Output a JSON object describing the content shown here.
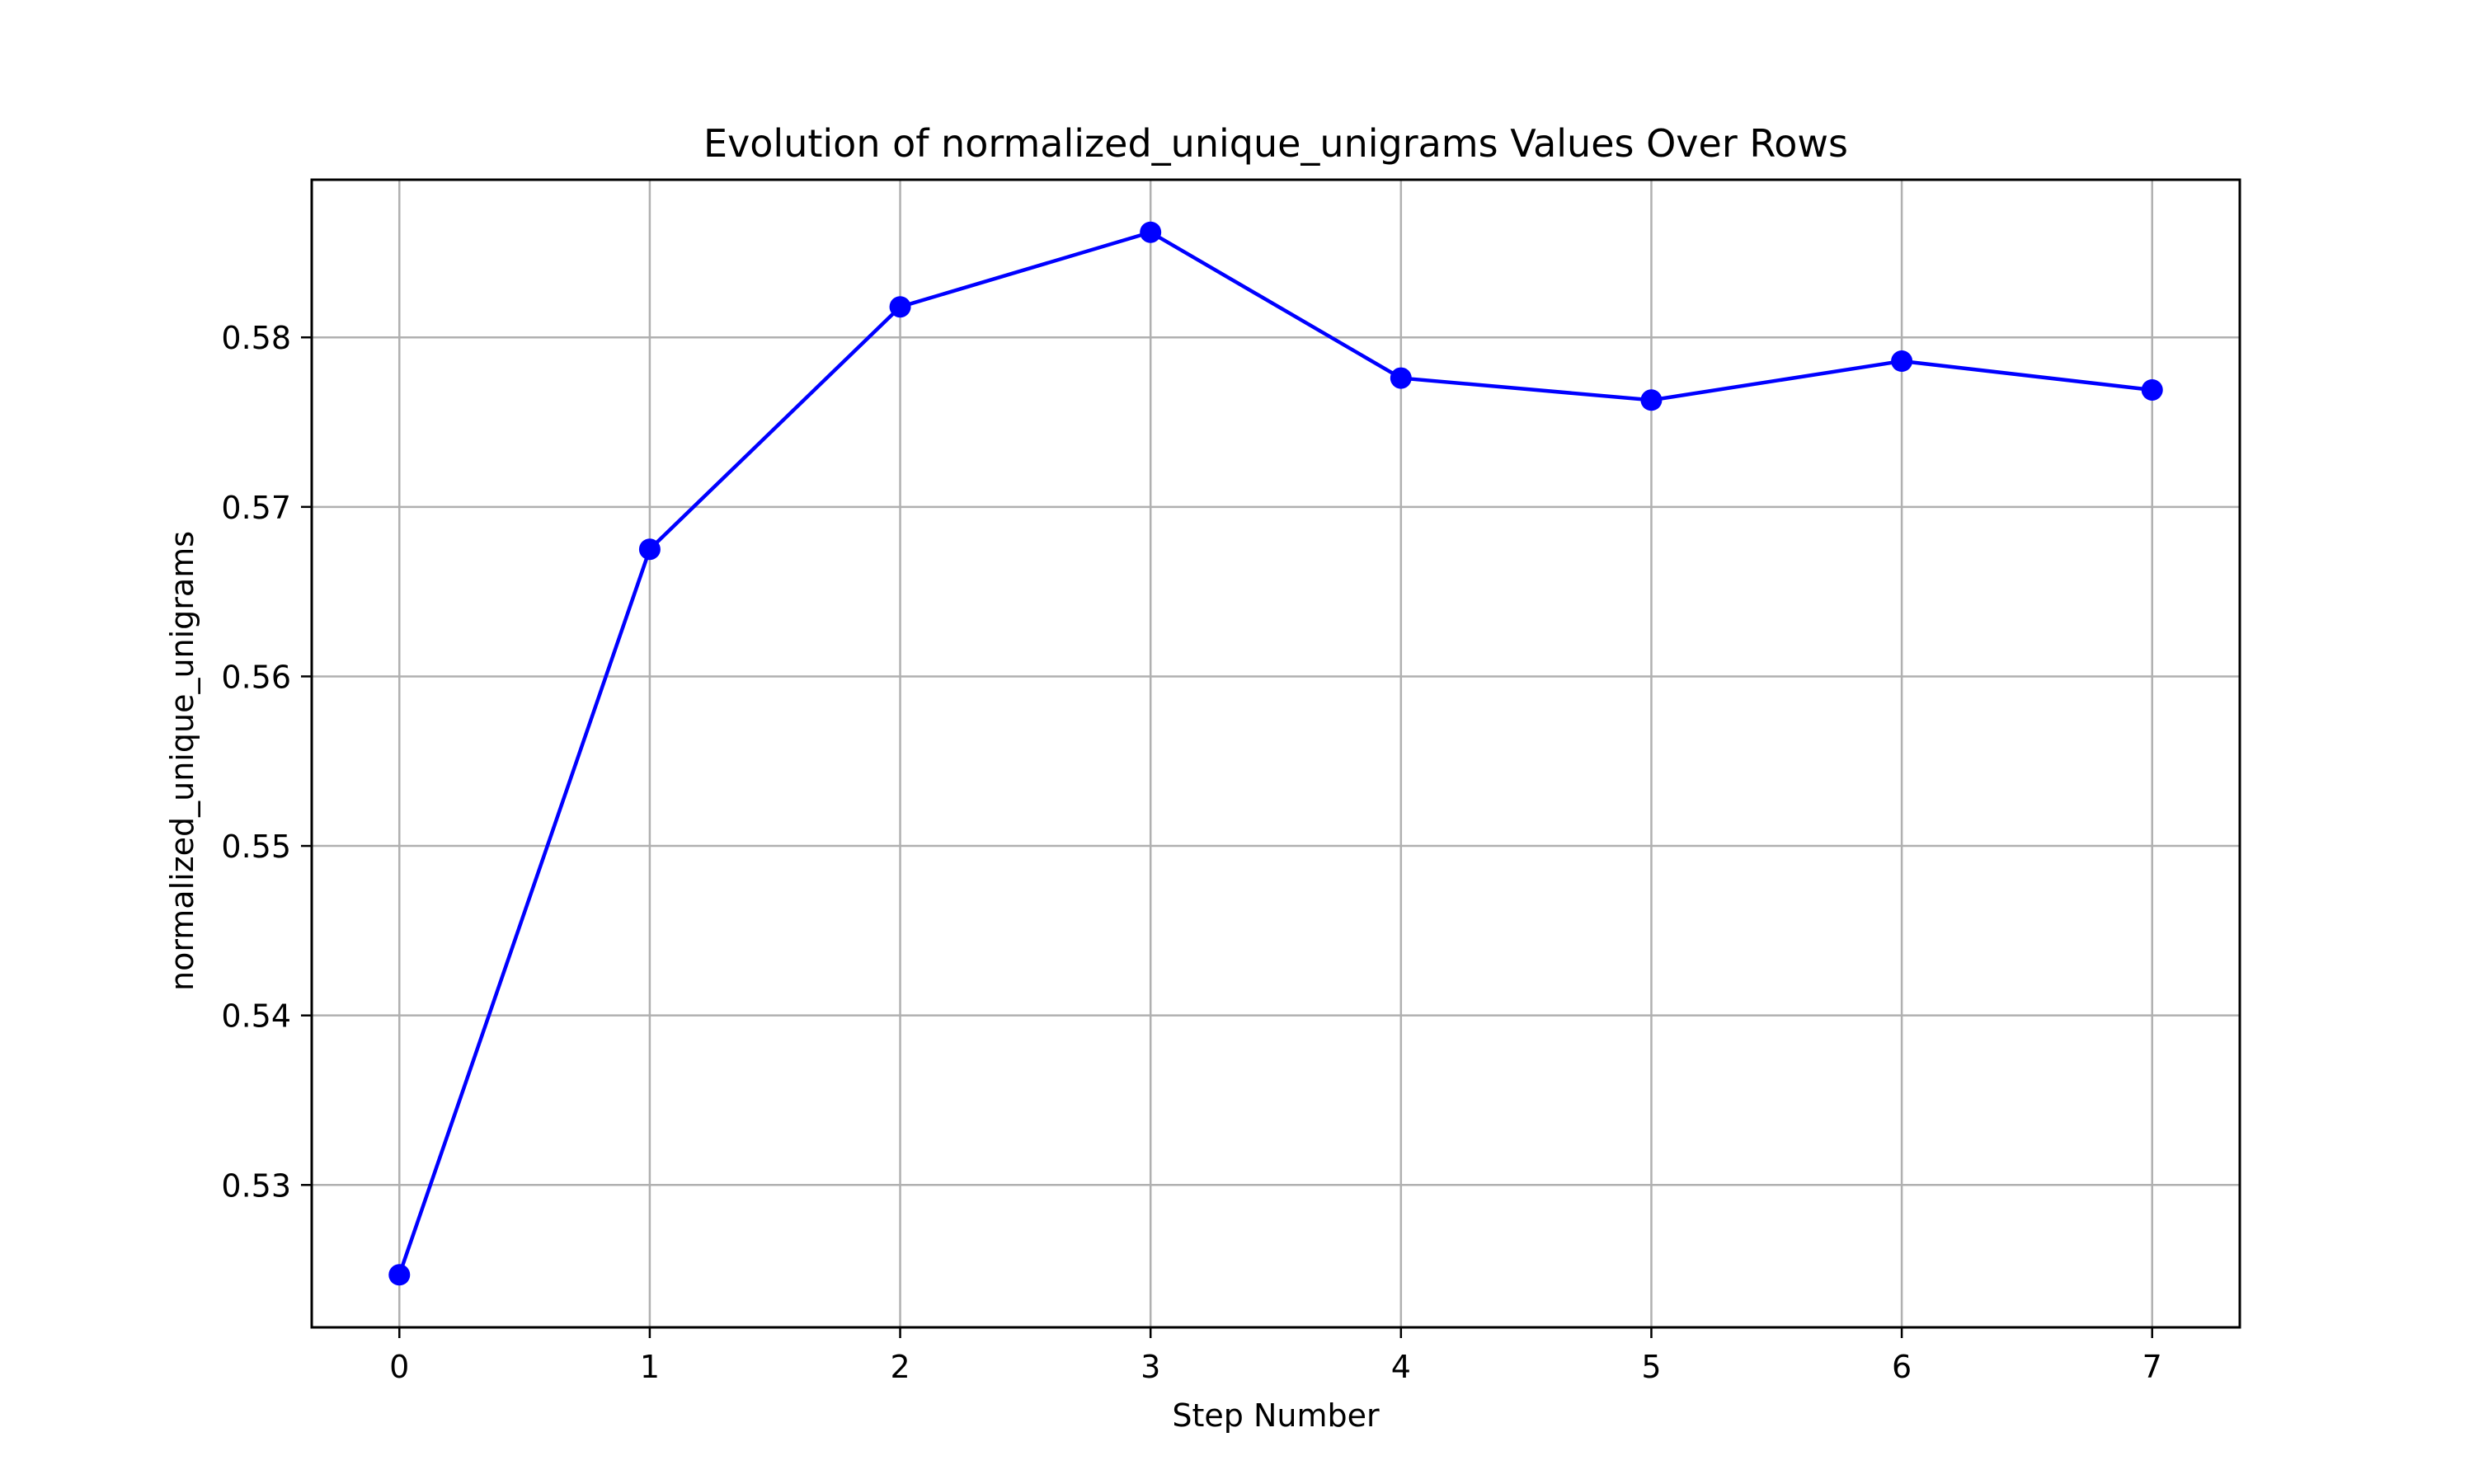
{
  "chart_data": {
    "type": "line",
    "title": "Evolution of normalized_unique_unigrams Values Over Rows",
    "xlabel": "Step Number",
    "ylabel": "normalized_unique_unigrams",
    "x": [
      0,
      1,
      2,
      3,
      4,
      5,
      6,
      7
    ],
    "series": [
      {
        "values": [
          0.5247,
          0.5675,
          0.5818,
          0.5862,
          0.5776,
          0.5763,
          0.5786,
          0.5769
        ],
        "color": "#0000ff",
        "marker": "circle"
      }
    ],
    "xlim": [
      -0.35,
      7.35
    ],
    "ylim": [
      0.5216,
      0.5893
    ],
    "x_ticks": [
      "0",
      "1",
      "2",
      "3",
      "4",
      "5",
      "6",
      "7"
    ],
    "y_ticks": [
      "0.53",
      "0.54",
      "0.55",
      "0.56",
      "0.57",
      "0.58"
    ],
    "grid": true,
    "legend": "none",
    "colors": {
      "line": "#0000ff",
      "grid": "#b0b0b0",
      "axes": "#000000",
      "background": "#ffffff"
    }
  }
}
